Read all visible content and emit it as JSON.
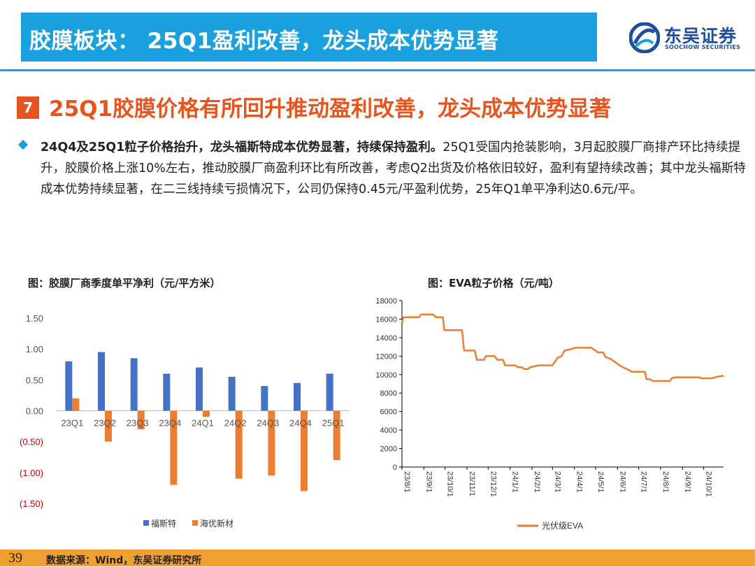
{
  "header": {
    "title": "胶膜板块： 25Q1盈利改善，龙头成本优势显著"
  },
  "logo": {
    "cn": "东吴证券",
    "en": "SOOCHOW SECURITIES"
  },
  "section": {
    "number": "7",
    "title": "25Q1胶膜价格有所回升推动盈利改善，龙头成本优势显著"
  },
  "body": {
    "bold": "24Q4及25Q1粒子价格抬升，龙头福斯特成本优势显著，持续保持盈利。",
    "text": "25Q1受国内抢装影响，3月起胶膜厂商排产环比持续提升，胶膜价格上涨10%左右，推动胶膜厂商盈利环比有所改善，考虑Q2出货及价格依旧较好，盈利有望持续改善；其中龙头福斯特成本优势持续显著，在二三线持续亏损情况下，公司仍保持0.45元/平盈利优势，25年Q1单平净利达0.6元/平。"
  },
  "colors": {
    "accent": "#1aa0de",
    "orange": "#e8541e",
    "footer": "#f0a030",
    "blue_series": "#4472c4",
    "orange_series": "#ed7d31"
  },
  "chart_data": [
    {
      "type": "bar",
      "title": "图：胶膜厂商季度单平净利（元/平方米）",
      "categories": [
        "23Q1",
        "23Q2",
        "23Q3",
        "23Q4",
        "24Q1",
        "24Q2",
        "24Q3",
        "24Q4",
        "25Q1"
      ],
      "series": [
        {
          "name": "福斯特",
          "values": [
            0.8,
            0.95,
            0.85,
            0.6,
            0.7,
            0.55,
            0.4,
            0.45,
            0.6
          ]
        },
        {
          "name": "海优新材",
          "values": [
            0.2,
            -0.5,
            -0.3,
            -1.2,
            -0.1,
            -1.1,
            -1.05,
            -1.3,
            -0.8
          ]
        }
      ],
      "ylim": [
        -1.5,
        1.5
      ],
      "yticks": [
        "1.50",
        "1.00",
        "0.50",
        "0.00",
        "(0.50)",
        "(1.00)",
        "(1.50)"
      ],
      "legend": "bottom"
    },
    {
      "type": "line",
      "title": "图：EVA粒子价格（元/吨）",
      "series": [
        {
          "name": "光伏级EVA",
          "points": [
            [
              "23/8/1",
              15600
            ],
            [
              "23/8/3",
              16200
            ],
            [
              "23/8/25",
              16200
            ],
            [
              "23/8/28",
              16500
            ],
            [
              "23/9/14",
              16500
            ],
            [
              "23/9/18",
              16200
            ],
            [
              "23/9/28",
              16200
            ],
            [
              "23/9/30",
              14800
            ],
            [
              "23/10/25",
              14800
            ],
            [
              "23/10/28",
              12600
            ],
            [
              "23/11/12",
              12600
            ],
            [
              "23/11/15",
              11600
            ],
            [
              "23/11/25",
              11600
            ],
            [
              "23/11/28",
              12000
            ],
            [
              "23/12/10",
              12000
            ],
            [
              "23/12/14",
              11600
            ],
            [
              "23/12/22",
              11600
            ],
            [
              "23/12/25",
              11000
            ],
            [
              "24/1/8",
              11000
            ],
            [
              "24/1/12",
              10800
            ],
            [
              "24/1/18",
              10800
            ],
            [
              "24/1/21",
              10600
            ],
            [
              "24/1/26",
              10600
            ],
            [
              "24/1/30",
              10800
            ],
            [
              "24/2/5",
              10900
            ],
            [
              "24/2/10",
              11000
            ],
            [
              "24/3/1",
              11000
            ],
            [
              "24/3/8",
              11800
            ],
            [
              "24/3/14",
              12000
            ],
            [
              "24/3/18",
              12600
            ],
            [
              "24/3/25",
              12700
            ],
            [
              "24/4/2",
              12900
            ],
            [
              "24/4/25",
              12900
            ],
            [
              "24/5/1",
              12600
            ],
            [
              "24/5/4",
              12400
            ],
            [
              "24/5/12",
              12400
            ],
            [
              "24/5/15",
              11900
            ],
            [
              "24/5/22",
              11700
            ],
            [
              "24/5/28",
              11400
            ],
            [
              "24/6/4",
              11000
            ],
            [
              "24/6/11",
              10700
            ],
            [
              "24/6/17",
              10500
            ],
            [
              "24/6/21",
              10300
            ],
            [
              "24/7/10",
              10300
            ],
            [
              "24/7/12",
              9500
            ],
            [
              "24/7/17",
              9500
            ],
            [
              "24/7/21",
              9300
            ],
            [
              "24/8/14",
              9300
            ],
            [
              "24/8/17",
              9600
            ],
            [
              "24/8/21",
              9700
            ],
            [
              "24/9/25",
              9700
            ],
            [
              "24/9/28",
              9600
            ],
            [
              "24/10/12",
              9600
            ],
            [
              "24/10/22",
              9800
            ],
            [
              "24/11/1",
              9900
            ],
            [
              "24/11/8",
              10000
            ]
          ]
        }
      ],
      "xticks": [
        "23/8/1",
        "23/9/1",
        "23/10/1",
        "23/11/1",
        "23/12/1",
        "24/1/1",
        "24/2/1",
        "24/3/1",
        "24/4/1",
        "24/5/1",
        "24/6/1",
        "24/7/1",
        "24/8/1",
        "24/9/1",
        "24/10/1"
      ],
      "ylim": [
        0,
        18000
      ],
      "yticks": [
        0,
        2000,
        4000,
        6000,
        8000,
        10000,
        12000,
        14000,
        16000,
        18000
      ],
      "legend": "bottom"
    }
  ],
  "footer": {
    "page": "39",
    "source": "数据来源：Wind，东吴证券研究所"
  }
}
